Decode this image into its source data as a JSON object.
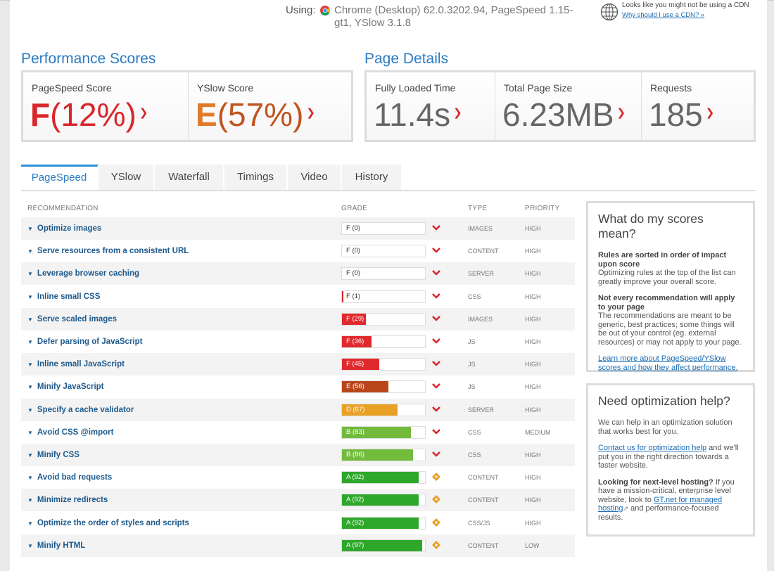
{
  "header": {
    "using_label": "Using:",
    "browser_info": "Chrome (Desktop) 62.0.3202.94, PageSpeed 1.15-gt1, YSlow 3.1.8",
    "cdn_message": "Looks like you might not be using a CDN",
    "cdn_link": "Why should I use a CDN? »"
  },
  "performance": {
    "title": "Performance Scores",
    "pagespeed": {
      "label": "PageSpeed Score",
      "grade": "F",
      "percent": "(12%)"
    },
    "yslow": {
      "label": "YSlow Score",
      "grade": "E",
      "percent": "(57%)"
    }
  },
  "details": {
    "title": "Page Details",
    "load_time": {
      "label": "Fully Loaded Time",
      "value": "11.4s"
    },
    "page_size": {
      "label": "Total Page Size",
      "value": "6.23MB"
    },
    "requests": {
      "label": "Requests",
      "value": "185"
    }
  },
  "tabs": [
    "PageSpeed",
    "YSlow",
    "Waterfall",
    "Timings",
    "Video",
    "History"
  ],
  "active_tab": "PageSpeed",
  "table": {
    "headers": {
      "recommendation": "RECOMMENDATION",
      "grade": "GRADE",
      "type": "TYPE",
      "priority": "PRIORITY"
    },
    "rows": [
      {
        "name": "Optimize images",
        "grade": "F (0)",
        "score": 0,
        "color": "#d9262b",
        "icon": "chevron-down-icon",
        "type": "IMAGES",
        "priority": "HIGH"
      },
      {
        "name": "Serve resources from a consistent URL",
        "grade": "F (0)",
        "score": 0,
        "color": "#d9262b",
        "icon": "chevron-down-icon",
        "type": "CONTENT",
        "priority": "HIGH"
      },
      {
        "name": "Leverage browser caching",
        "grade": "F (0)",
        "score": 0,
        "color": "#d9262b",
        "icon": "chevron-down-icon",
        "type": "SERVER",
        "priority": "HIGH"
      },
      {
        "name": "Inline small CSS",
        "grade": "F (1)",
        "score": 1,
        "color": "#d9262b",
        "icon": "chevron-down-icon",
        "type": "CSS",
        "priority": "HIGH"
      },
      {
        "name": "Serve scaled images",
        "grade": "F (29)",
        "score": 29,
        "color": "#e0292e",
        "icon": "chevron-down-icon",
        "type": "IMAGES",
        "priority": "HIGH"
      },
      {
        "name": "Defer parsing of JavaScript",
        "grade": "F (36)",
        "score": 36,
        "color": "#e0292e",
        "icon": "chevron-down-icon",
        "type": "JS",
        "priority": "HIGH"
      },
      {
        "name": "Inline small JavaScript",
        "grade": "F (45)",
        "score": 45,
        "color": "#e0292e",
        "icon": "chevron-down-icon",
        "type": "JS",
        "priority": "HIGH"
      },
      {
        "name": "Minify JavaScript",
        "grade": "E (56)",
        "score": 56,
        "color": "#b8461a",
        "icon": "chevron-down-icon",
        "type": "JS",
        "priority": "HIGH"
      },
      {
        "name": "Specify a cache validator",
        "grade": "D (67)",
        "score": 67,
        "color": "#e8a025",
        "icon": "chevron-down-icon",
        "type": "SERVER",
        "priority": "HIGH"
      },
      {
        "name": "Avoid CSS @import",
        "grade": "B (83)",
        "score": 83,
        "color": "#72bb3c",
        "icon": "chevron-down-icon",
        "type": "CSS",
        "priority": "MEDIUM"
      },
      {
        "name": "Minify CSS",
        "grade": "B (86)",
        "score": 86,
        "color": "#72bb3c",
        "icon": "chevron-down-icon",
        "type": "CSS",
        "priority": "HIGH"
      },
      {
        "name": "Avoid bad requests",
        "grade": "A (92)",
        "score": 92,
        "color": "#2ea82a",
        "icon": "diamond-icon",
        "type": "CONTENT",
        "priority": "HIGH"
      },
      {
        "name": "Minimize redirects",
        "grade": "A (92)",
        "score": 92,
        "color": "#2ea82a",
        "icon": "diamond-icon",
        "type": "CONTENT",
        "priority": "HIGH"
      },
      {
        "name": "Optimize the order of styles and scripts",
        "grade": "A (92)",
        "score": 92,
        "color": "#2ea82a",
        "icon": "diamond-icon",
        "type": "CSS/JS",
        "priority": "HIGH"
      },
      {
        "name": "Minify HTML",
        "grade": "A (97)",
        "score": 97,
        "color": "#2ea82a",
        "icon": "diamond-icon",
        "type": "CONTENT",
        "priority": "LOW"
      }
    ]
  },
  "scores_panel": {
    "title": "What do my scores mean?",
    "heading1": "Rules are sorted in order of impact upon score",
    "text1": "Optimizing rules at the top of the list can greatly improve your overall score.",
    "heading2": "Not every recommendation will apply to your page",
    "text2": "The recommendations are meant to be generic, best practices; some things will be out of your control (eg. external resources) or may not apply to your page.",
    "link": "Learn more about PageSpeed/YSlow scores and how they affect performance."
  },
  "help_panel": {
    "title": "Need optimization help?",
    "text1": "We can help in an optimization solution that works best for you.",
    "contact_link": "Contact us for optimization help",
    "text2": " and we'll put you in the right direction towards a faster website.",
    "hosting_heading": "Looking for next-level hosting?",
    "hosting_text": " If you have a mission-critical, enterprise level website, look to ",
    "hosting_link": "GT.net for managed hosting",
    "hosting_tail": " and performance-focused results."
  },
  "colors": {
    "accent": "#2a7cc2",
    "grade_f": "#d9262b",
    "grade_e": "#c0541f",
    "caret": "#d9262b",
    "diamond": "#e8a025"
  }
}
